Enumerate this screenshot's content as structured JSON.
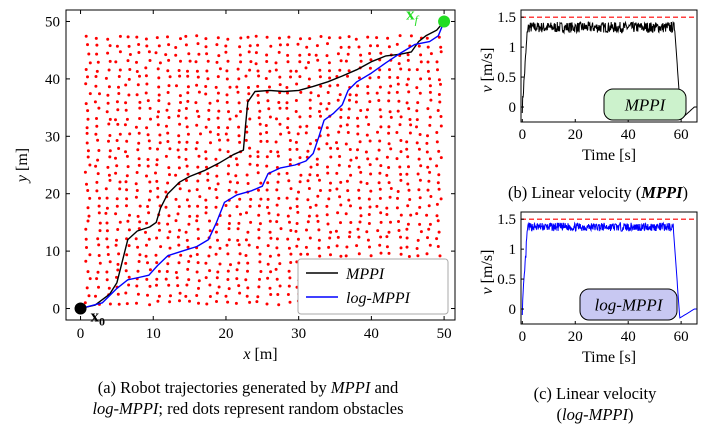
{
  "chart_data": [
    {
      "type": "scatter",
      "xlabel": "x [m]",
      "ylabel": "y [m]",
      "xlim": [
        -2,
        51.5
      ],
      "ylim": [
        -2,
        52
      ],
      "xticks": [
        0,
        10,
        20,
        30,
        40,
        50
      ],
      "yticks": [
        0,
        10,
        20,
        30,
        40,
        50
      ],
      "start_label": "x",
      "start_sub": "0",
      "goal_label": "x",
      "goal_sub": "f",
      "start": [
        0,
        0
      ],
      "goal": [
        50,
        50
      ],
      "obstacle_color": "#ff0000",
      "obstacles": {
        "x_start": 1,
        "x_step": 1.38,
        "count_x": 36,
        "y_start": 1,
        "y_step": 1.4,
        "count_y": 34,
        "jitter": 0.35
      },
      "series": [
        {
          "name": "MPPI",
          "color": "#000000",
          "points": [
            [
              0,
              0
            ],
            [
              2,
              0.6
            ],
            [
              4,
              2.5
            ],
            [
              5,
              4.5
            ],
            [
              5.7,
              8
            ],
            [
              6.5,
              12
            ],
            [
              7.8,
              13.5
            ],
            [
              9.5,
              14.2
            ],
            [
              10.4,
              15
            ],
            [
              11,
              17.5
            ],
            [
              12,
              20
            ],
            [
              13.6,
              22
            ],
            [
              15,
              23
            ],
            [
              17,
              24
            ],
            [
              19,
              25.3
            ],
            [
              21,
              26.8
            ],
            [
              22.4,
              27.6
            ],
            [
              22.7,
              32
            ],
            [
              23,
              36
            ],
            [
              24,
              37.8
            ],
            [
              26,
              38
            ],
            [
              28,
              37.8
            ],
            [
              30,
              38
            ],
            [
              32,
              38.7
            ],
            [
              34,
              39.5
            ],
            [
              36,
              40.5
            ],
            [
              38,
              41.6
            ],
            [
              40,
              43
            ],
            [
              42,
              44
            ],
            [
              44,
              44.3
            ],
            [
              45.5,
              44.7
            ],
            [
              46.5,
              46.5
            ],
            [
              47.5,
              47.5
            ],
            [
              49,
              48.5
            ],
            [
              50,
              50
            ]
          ]
        },
        {
          "name": "log-MPPI",
          "color": "#0000ff",
          "points": [
            [
              0,
              0
            ],
            [
              3,
              1
            ],
            [
              5,
              3.5
            ],
            [
              6.5,
              5
            ],
            [
              8,
              5.4
            ],
            [
              9.4,
              5.8
            ],
            [
              10.6,
              7.5
            ],
            [
              12,
              9.2
            ],
            [
              14,
              10
            ],
            [
              16,
              10.8
            ],
            [
              17.6,
              12
            ],
            [
              18.7,
              15
            ],
            [
              19.8,
              18.5
            ],
            [
              21.5,
              19.8
            ],
            [
              23.5,
              20.5
            ],
            [
              25,
              21.3
            ],
            [
              25.8,
              23.5
            ],
            [
              27.5,
              24.5
            ],
            [
              29.5,
              25
            ],
            [
              31,
              25.7
            ],
            [
              32,
              27
            ],
            [
              32.8,
              30
            ],
            [
              33.5,
              32.8
            ],
            [
              34.8,
              34
            ],
            [
              36,
              35.5
            ],
            [
              36.8,
              38
            ],
            [
              38,
              39.5
            ],
            [
              40,
              41
            ],
            [
              42,
              42.8
            ],
            [
              44,
              44.5
            ],
            [
              46,
              46
            ],
            [
              48,
              46.5
            ],
            [
              49.2,
              47.5
            ],
            [
              50,
              50
            ]
          ]
        }
      ],
      "legend_location": "bottom-right"
    },
    {
      "type": "line",
      "panel": "MPPI",
      "badge": "MPPI",
      "xlabel": "Time [s]",
      "ylabel": "v [m/s]",
      "xlim": [
        -0.5,
        66
      ],
      "ylim": [
        -0.25,
        1.62
      ],
      "xticks": [
        0,
        20,
        40,
        60
      ],
      "yticks": [
        0,
        0.5,
        1,
        1.5
      ],
      "limit_line": 1.5,
      "color": "#000000",
      "badge_color": "#ccf2cc",
      "profile": {
        "rise_end": 2,
        "plateau_mean": 1.33,
        "noise": 0.09,
        "drop_start": 57.5,
        "min": -0.2,
        "min_t": 60,
        "settle_end": 65
      },
      "seed": 7
    },
    {
      "type": "line",
      "panel": "log-MPPI",
      "badge": "log-MPPI",
      "xlabel": "Time [s]",
      "ylabel": "v [m/s]",
      "xlim": [
        -0.5,
        66
      ],
      "ylim": [
        -0.25,
        1.62
      ],
      "xticks": [
        0,
        20,
        40,
        60
      ],
      "yticks": [
        0,
        0.5,
        1,
        1.5
      ],
      "limit_line": 1.5,
      "color": "#0000ff",
      "badge_color": "#c8c8f2",
      "profile": {
        "rise_end": 2,
        "plateau_mean": 1.37,
        "noise": 0.07,
        "drop_start": 57,
        "min": -0.15,
        "min_t": 59.5,
        "settle_end": 65
      },
      "seed": 13
    }
  ],
  "captions": {
    "a_line1_pre": "(a) Robot trajectories generated by ",
    "a_line1_em": "MPPI",
    "a_line1_post": " and",
    "a_line2_em": "log-MPPI",
    "a_line2_post": "; red dots represent random obstacles",
    "b_pre": "(b) Linear velocity (",
    "b_em": "MPPI",
    "b_post": ")",
    "c_line1": "(c) Linear velocity",
    "c_line2_pre": "(",
    "c_line2_em": "log-MPPI",
    "c_line2_post": ")"
  }
}
